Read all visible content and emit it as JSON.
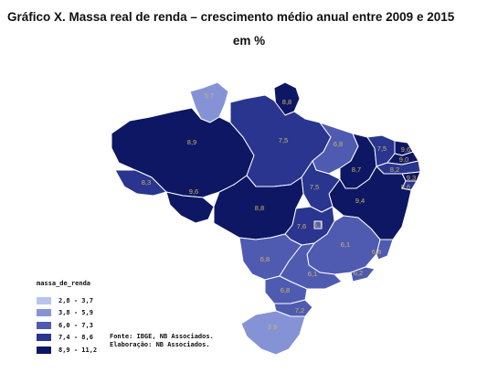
{
  "title": "Gráfico X. Massa real de renda – crescimento médio anual entre 2009 e 2015",
  "subtitle": "em %",
  "legend": {
    "title": "massa_de_renda",
    "items": [
      {
        "label": "2,8 - 3,7",
        "color": "#b9c3f0"
      },
      {
        "label": "3,8 - 5,9",
        "color": "#8593d6"
      },
      {
        "label": "6,0 - 7,3",
        "color": "#4f5bb0"
      },
      {
        "label": "7,4 - 8,6",
        "color": "#2a3590"
      },
      {
        "label": "8,9 - 11,2",
        "color": "#0e1763"
      }
    ]
  },
  "source": {
    "line1": "Fonte: IBGE, NB Associados.",
    "line2": "Elaboração: NB Associados."
  },
  "states": [
    {
      "id": "RR",
      "value": "5,7"
    },
    {
      "id": "AP",
      "value": "8,8"
    },
    {
      "id": "AM",
      "value": "8,9"
    },
    {
      "id": "PA",
      "value": "7,5"
    },
    {
      "id": "MA",
      "value": "6,8"
    },
    {
      "id": "CE",
      "value": "7,5"
    },
    {
      "id": "RN",
      "value": "9,6"
    },
    {
      "id": "PB",
      "value": "9,0"
    },
    {
      "id": "PE",
      "value": "8,2"
    },
    {
      "id": "AL",
      "value": "9,3"
    },
    {
      "id": "SE",
      "value": "8,6"
    },
    {
      "id": "PI",
      "value": "8,7"
    },
    {
      "id": "AC",
      "value": "8,3"
    },
    {
      "id": "RO",
      "value": "9,6"
    },
    {
      "id": "TO",
      "value": "7,5"
    },
    {
      "id": "BA",
      "value": "9,4"
    },
    {
      "id": "MT",
      "value": "8,8"
    },
    {
      "id": "GO",
      "value": "7,6"
    },
    {
      "id": "DF",
      "value": "6,1"
    },
    {
      "id": "MG",
      "value": "6,1"
    },
    {
      "id": "ES",
      "value": "6,8"
    },
    {
      "id": "MS",
      "value": "6,8"
    },
    {
      "id": "SP",
      "value": "6,1"
    },
    {
      "id": "RJ",
      "value": "6,2"
    },
    {
      "id": "PR",
      "value": "6,8"
    },
    {
      "id": "SC",
      "value": "7,2"
    },
    {
      "id": "RS",
      "value": "3,9"
    }
  ]
}
